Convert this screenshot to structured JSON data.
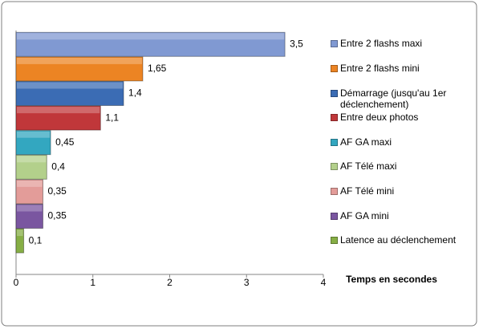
{
  "chart_data": {
    "type": "bar",
    "orientation": "horizontal",
    "x_label": "Temps en secondes",
    "categories": [
      "Entre 2 flashs maxi",
      "Entre 2 flashs mini",
      "Démarrage (jusqu'au 1er déclenchement)",
      "Entre deux photos",
      "AF GA maxi",
      "AF Télé maxi",
      "AF Télé mini",
      "AF GA mini",
      "Latence au déclenchement"
    ],
    "values": [
      3.5,
      1.65,
      1.4,
      1.1,
      0.45,
      0.4,
      0.35,
      0.35,
      0.1
    ],
    "value_labels": [
      "3,5",
      "1,65",
      "1,4",
      "1,1",
      "0,45",
      "0,4",
      "0,35",
      "0,35",
      "0,1"
    ],
    "colors": [
      "#8099d2",
      "#ec8423",
      "#3b6cb4",
      "#c0373a",
      "#33a7c0",
      "#b3d08b",
      "#e39c99",
      "#7a56a0",
      "#86ae45"
    ],
    "xlim": [
      0,
      4
    ],
    "xticks": [
      0,
      1,
      2,
      3,
      4
    ],
    "legend": "right"
  }
}
